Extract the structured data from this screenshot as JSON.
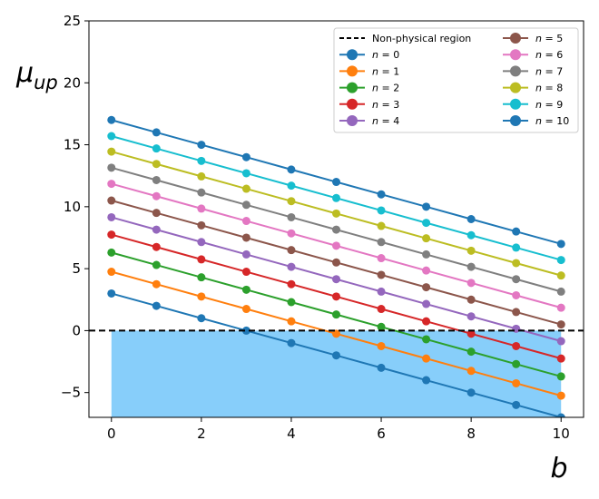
{
  "chart_data": {
    "type": "line",
    "title": "",
    "xlabel": "b",
    "ylabel": "μ",
    "ylabel_sub": "up",
    "xlim": [
      -0.5,
      10.5
    ],
    "ylim": [
      -7,
      25
    ],
    "xticks": [
      0,
      2,
      4,
      6,
      8,
      10
    ],
    "yticks": [
      -5,
      0,
      5,
      10,
      15,
      20,
      25
    ],
    "grid": false,
    "legend_position": "top-right",
    "x": [
      0,
      1,
      2,
      3,
      4,
      5,
      6,
      7,
      8,
      9,
      10
    ],
    "reference_line": {
      "name": "Non-physical region",
      "y": 0,
      "style": "dashed",
      "color": "#000000"
    },
    "shaded_region": {
      "x_from": 0,
      "x_to": 10,
      "y_from": -7,
      "y_to": 0,
      "color": "#87cefa"
    },
    "series": [
      {
        "name": "n = 0",
        "label_var": "n",
        "label_val": "0",
        "color": "#1f77b4",
        "values": [
          3.0,
          2.0,
          1.0,
          0.0,
          -1.0,
          -2.0,
          -3.0,
          -4.0,
          -5.0,
          -6.0,
          -7.0
        ]
      },
      {
        "name": "n = 1",
        "label_var": "n",
        "label_val": "1",
        "color": "#ff7f0e",
        "values": [
          4.75,
          3.75,
          2.75,
          1.75,
          0.75,
          -0.25,
          -1.25,
          -2.25,
          -3.25,
          -4.25,
          -5.25
        ]
      },
      {
        "name": "n = 2",
        "label_var": "n",
        "label_val": "2",
        "color": "#2ca02c",
        "values": [
          6.3,
          5.3,
          4.3,
          3.3,
          2.3,
          1.3,
          0.3,
          -0.7,
          -1.7,
          -2.7,
          -3.7
        ]
      },
      {
        "name": "n = 3",
        "label_var": "n",
        "label_val": "3",
        "color": "#d62728",
        "values": [
          7.75,
          6.75,
          5.75,
          4.75,
          3.75,
          2.75,
          1.75,
          0.75,
          -0.25,
          -1.25,
          -2.25
        ]
      },
      {
        "name": "n = 4",
        "label_var": "n",
        "label_val": "4",
        "color": "#9467bd",
        "values": [
          9.15,
          8.15,
          7.15,
          6.15,
          5.15,
          4.15,
          3.15,
          2.15,
          1.15,
          0.15,
          -0.85
        ]
      },
      {
        "name": "n = 5",
        "label_var": "n",
        "label_val": "5",
        "color": "#8c564b",
        "values": [
          10.5,
          9.5,
          8.5,
          7.5,
          6.5,
          5.5,
          4.5,
          3.5,
          2.5,
          1.5,
          0.5
        ]
      },
      {
        "name": "n = 6",
        "label_var": "n",
        "label_val": "6",
        "color": "#e377c2",
        "values": [
          11.85,
          10.85,
          9.85,
          8.85,
          7.85,
          6.85,
          5.85,
          4.85,
          3.85,
          2.85,
          1.85
        ]
      },
      {
        "name": "n = 7",
        "label_var": "n",
        "label_val": "7",
        "color": "#7f7f7f",
        "values": [
          13.15,
          12.15,
          11.15,
          10.15,
          9.15,
          8.15,
          7.15,
          6.15,
          5.15,
          4.15,
          3.15
        ]
      },
      {
        "name": "n = 8",
        "label_var": "n",
        "label_val": "8",
        "color": "#bcbd22",
        "values": [
          14.45,
          13.45,
          12.45,
          11.45,
          10.45,
          9.45,
          8.45,
          7.45,
          6.45,
          5.45,
          4.45
        ]
      },
      {
        "name": "n = 9",
        "label_var": "n",
        "label_val": "9",
        "color": "#17becf",
        "values": [
          15.7,
          14.7,
          13.7,
          12.7,
          11.7,
          10.7,
          9.7,
          8.7,
          7.7,
          6.7,
          5.7
        ]
      },
      {
        "name": "n = 10",
        "label_var": "n",
        "label_val": "10",
        "color": "#1f77b4",
        "values": [
          17.0,
          16.0,
          15.0,
          14.0,
          13.0,
          12.0,
          11.0,
          10.0,
          9.0,
          8.0,
          7.0
        ]
      }
    ]
  }
}
